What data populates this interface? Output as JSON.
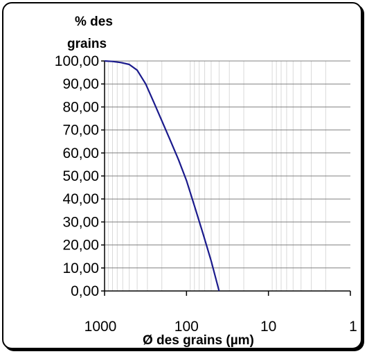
{
  "chart_data": {
    "type": "line",
    "title": "",
    "ylabel_line1": "% des",
    "ylabel_line2": "grains",
    "xlabel": "Ø des grains (µm)",
    "x_scale": "log",
    "x_reversed": true,
    "xlim": [
      1000,
      1
    ],
    "ylim": [
      0,
      100
    ],
    "x_ticks": [
      "1000",
      "100",
      "10",
      "1"
    ],
    "y_ticks": [
      "100,00",
      "90,00",
      "80,00",
      "70,00",
      "60,00",
      "50,00",
      "40,00",
      "30,00",
      "20,00",
      "10,00",
      "0,00"
    ],
    "grid": true,
    "line_color": "#1a1a8c",
    "series": [
      {
        "x": [
          1000,
          800,
          630,
          500,
          400,
          315,
          250,
          200,
          160,
          125,
          100,
          80,
          63,
          50,
          40
        ],
        "y": [
          100.0,
          99.8,
          99.3,
          98.5,
          96.0,
          90.0,
          82.0,
          74.0,
          66.0,
          57.0,
          48.0,
          37.0,
          25.0,
          13.0,
          0.0
        ]
      }
    ]
  }
}
